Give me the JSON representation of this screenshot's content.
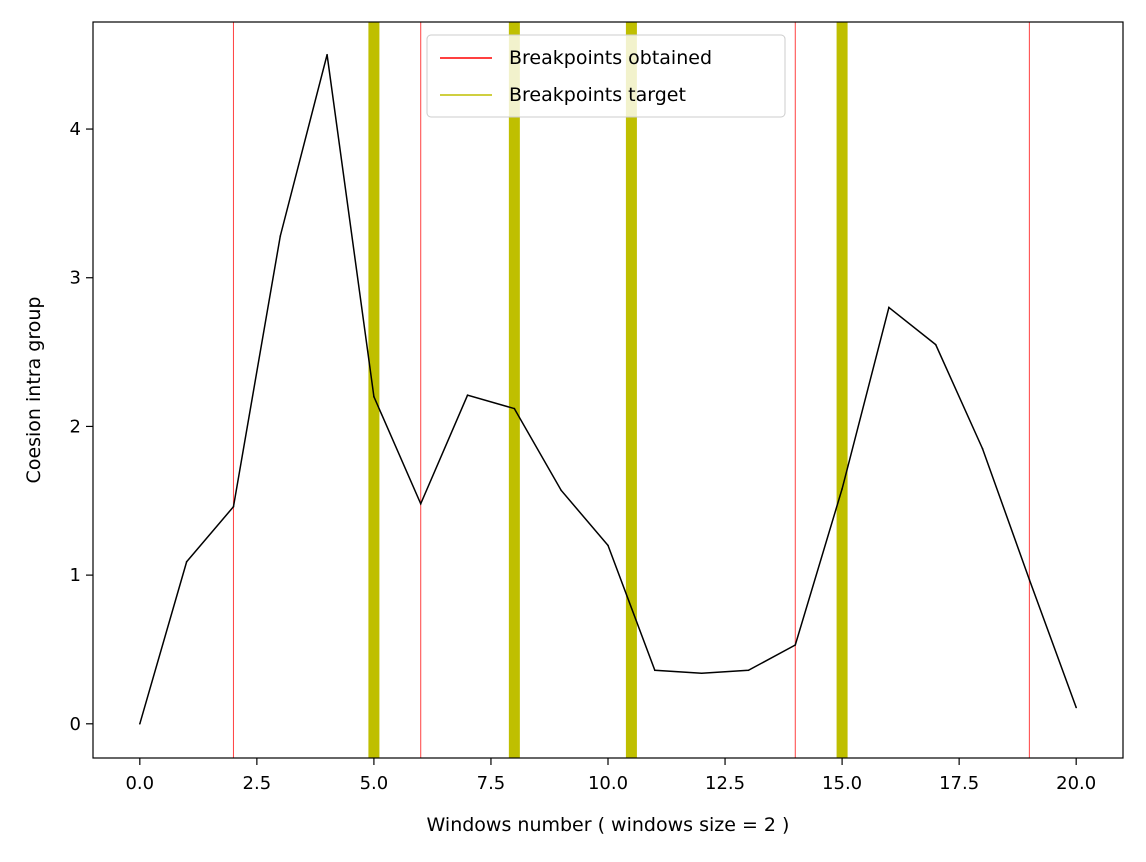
{
  "chart_data": {
    "type": "line",
    "title": "",
    "xlabel": "Windows number ( windows size = 2 )",
    "ylabel": "Coesion intra group",
    "xlim": [
      -1.0,
      21.0
    ],
    "ylim": [
      -0.23,
      4.72
    ],
    "x_ticks": [
      0.0,
      2.5,
      5.0,
      7.5,
      10.0,
      12.5,
      15.0,
      17.5,
      20.0
    ],
    "x_tick_labels": [
      "0.0",
      "2.5",
      "5.0",
      "7.5",
      "10.0",
      "12.5",
      "15.0",
      "17.5",
      "20.0"
    ],
    "y_ticks": [
      0,
      1,
      2,
      3,
      4
    ],
    "y_tick_labels": [
      "0",
      "1",
      "2",
      "3",
      "4"
    ],
    "grid": false,
    "legend_position": "top-center",
    "series": [
      {
        "color": "#000000",
        "x": [
          0,
          1,
          2,
          3,
          4,
          5,
          6,
          7,
          8,
          9,
          10,
          11,
          12,
          13,
          14,
          15,
          16,
          17,
          18,
          19,
          20
        ],
        "y": [
          0.0,
          1.09,
          1.46,
          3.28,
          4.5,
          2.2,
          1.48,
          2.21,
          2.12,
          1.57,
          1.2,
          0.36,
          0.34,
          0.36,
          0.53,
          1.58,
          2.8,
          2.55,
          1.85,
          0.97,
          0.11
        ]
      }
    ],
    "vlines": [
      {
        "name": "Breakpoints obtained",
        "color": "#ff0000",
        "x": [
          2,
          6,
          14,
          19
        ]
      },
      {
        "name": "Breakpoints target",
        "color": "#bfbf00",
        "x": [
          5,
          8,
          10.5,
          15
        ]
      }
    ]
  }
}
